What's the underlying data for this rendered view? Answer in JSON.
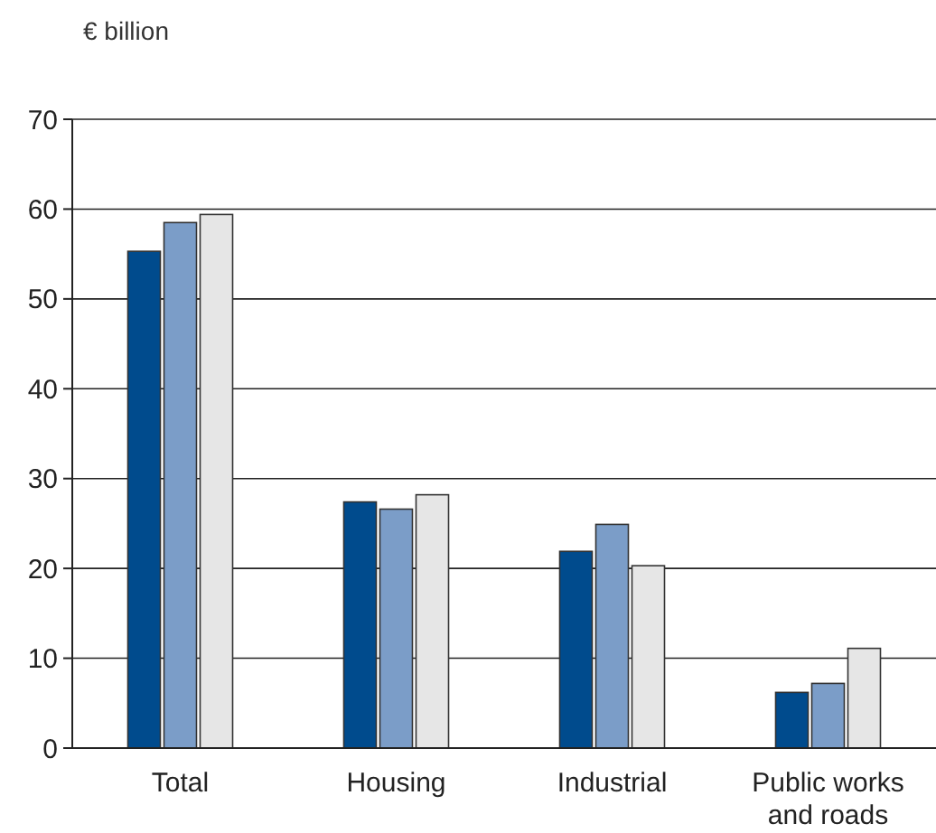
{
  "chart_data": {
    "type": "bar",
    "ylabel": "€ billion",
    "categories": [
      "Total",
      "Housing",
      "Industrial",
      "Public works and roads"
    ],
    "series": [
      {
        "color": "#004b8d",
        "values": [
          55.3,
          27.4,
          21.9,
          6.2
        ]
      },
      {
        "color": "#7b9dc8",
        "values": [
          58.5,
          26.6,
          24.9,
          7.2
        ]
      },
      {
        "color": "#e6e6e6",
        "values": [
          59.4,
          28.2,
          20.3,
          11.1
        ]
      }
    ],
    "ylim": [
      0,
      70
    ],
    "yticks": [
      0,
      10,
      20,
      30,
      40,
      50,
      60,
      70
    ],
    "grid": "y"
  }
}
